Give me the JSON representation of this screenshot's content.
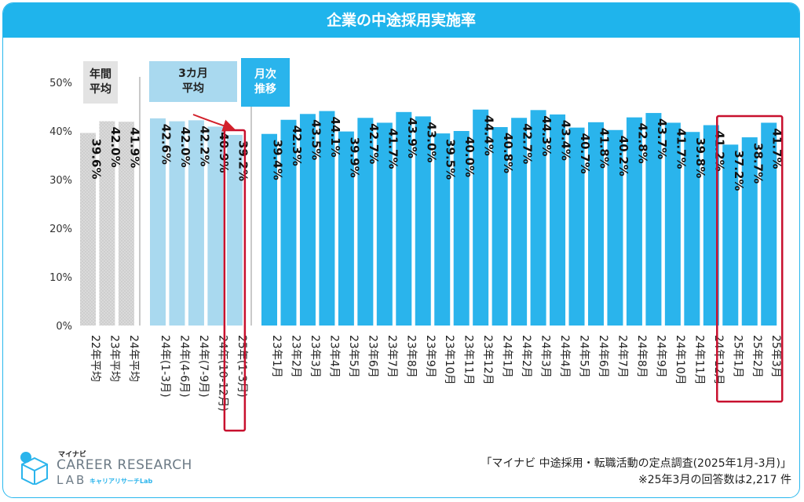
{
  "header": {
    "title": "企業の中途採用実施率"
  },
  "groups": {
    "annual": "年間\n平均",
    "quarterly": "3カ月\n平均",
    "monthly": "月次\n推移"
  },
  "chart_data": {
    "type": "bar",
    "title": "企業の中途採用実施率",
    "ylim": [
      0,
      50
    ],
    "y_ticks": [
      "0%",
      "10%",
      "20%",
      "30%",
      "40%",
      "50%"
    ],
    "grid": false,
    "categories": [
      "22年平均",
      "23年平均",
      "24年平均",
      "24年(1-3月)",
      "24年(4-6月)",
      "24年(7-9月)",
      "24年(10-12月)",
      "25年(1-3月)",
      "23年1月",
      "23年2月",
      "23年3月",
      "23年4月",
      "23年5月",
      "23年6月",
      "23年7月",
      "23年8月",
      "23年9月",
      "23年10月",
      "23年11月",
      "23年12月",
      "24年1月",
      "24年2月",
      "24年3月",
      "24年4月",
      "24年5月",
      "24年6月",
      "24年7月",
      "24年8月",
      "24年9月",
      "24年10月",
      "24年11月",
      "24年12月",
      "25年1月",
      "25年2月",
      "25年3月"
    ],
    "values": [
      39.6,
      42.0,
      41.9,
      42.6,
      42.0,
      42.2,
      40.9,
      39.2,
      39.4,
      42.3,
      43.5,
      44.1,
      39.9,
      42.7,
      41.7,
      43.9,
      43.0,
      39.5,
      40.0,
      44.4,
      40.8,
      42.7,
      44.3,
      43.4,
      40.7,
      41.8,
      40.2,
      42.8,
      43.7,
      41.7,
      39.8,
      41.2,
      37.2,
      38.7,
      41.7
    ],
    "value_labels": [
      "39.6%",
      "42.0%",
      "41.9%",
      "42.6%",
      "42.0%",
      "42.2%",
      "40.9%",
      "39.2%",
      "39.4%",
      "42.3%",
      "43.5%",
      "44.1%",
      "39.9%",
      "42.7%",
      "41.7%",
      "43.9%",
      "43.0%",
      "39.5%",
      "40.0%",
      "44.4%",
      "40.8%",
      "42.7%",
      "44.3%",
      "43.4%",
      "40.7%",
      "41.8%",
      "40.2%",
      "42.8%",
      "43.7%",
      "41.7%",
      "39.8%",
      "41.2%",
      "37.2%",
      "38.7%",
      "41.7%"
    ],
    "groups": [
      {
        "name": "年間平均",
        "count": 3,
        "color": "#d7d7d7"
      },
      {
        "name": "3カ月平均",
        "count": 5,
        "color": "#a9d9ef"
      },
      {
        "name": "月次推移",
        "count": 27,
        "color": "#2ab4ec"
      }
    ],
    "highlighted": [
      "25年(1-3月)",
      "25年1月",
      "25年2月",
      "25年3月"
    ],
    "highlight_color": "#c8102e"
  },
  "logo": {
    "brand_small": "マイナビ",
    "line1": "CAREER RESEARCH",
    "line2": "LAB",
    "line2_sub": "キャリアリサーチLab"
  },
  "footer": {
    "source": "「マイナビ 中途採用・転職活動の定点調査(2025年1月-3月)」",
    "note": "※25年3月の回答数は2,217 件"
  }
}
